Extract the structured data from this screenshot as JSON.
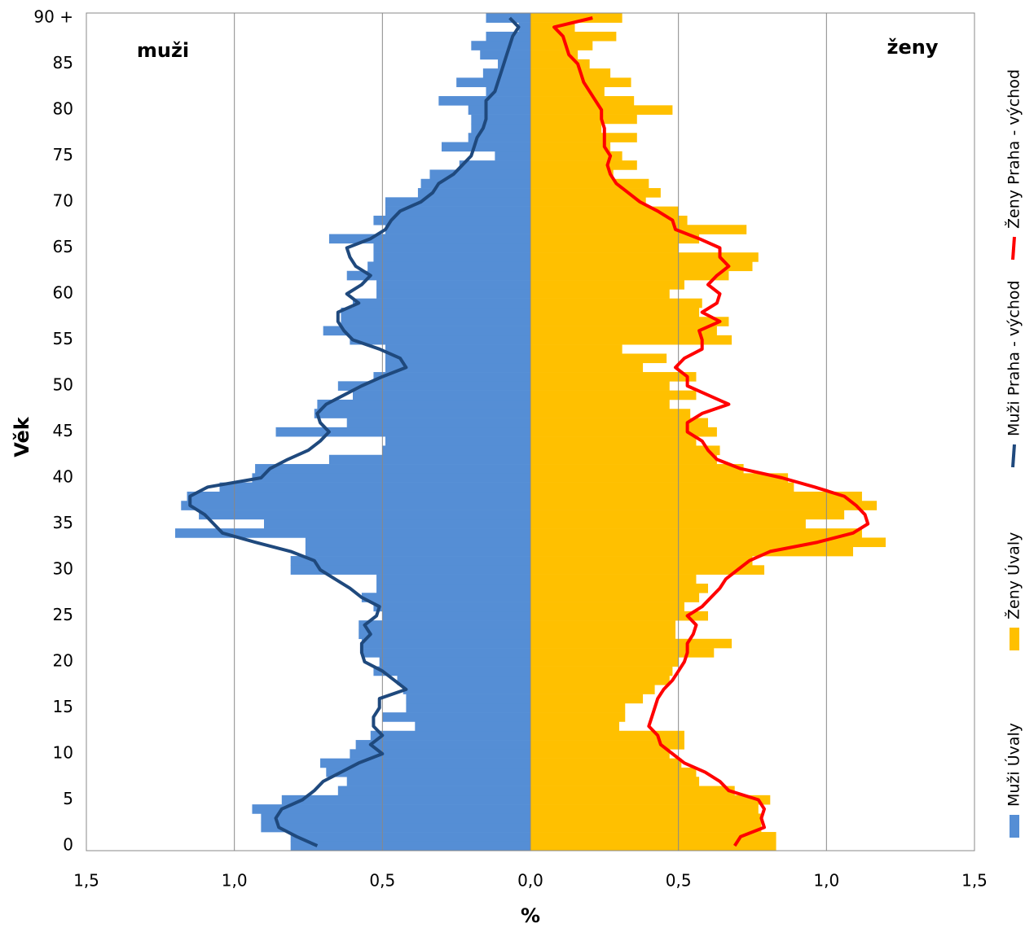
{
  "chart_data": {
    "type": "pyramid",
    "xlabel": "%",
    "ylabel": "Věk",
    "annotations": [
      "muži",
      "ženy"
    ],
    "categories": [
      "0",
      null,
      null,
      null,
      null,
      "5",
      null,
      null,
      null,
      null,
      "10",
      null,
      null,
      null,
      null,
      "15",
      null,
      null,
      null,
      null,
      "20",
      null,
      null,
      null,
      null,
      "25",
      null,
      null,
      null,
      null,
      "30",
      null,
      null,
      null,
      null,
      "35",
      null,
      null,
      null,
      null,
      "40",
      null,
      null,
      null,
      null,
      "45",
      null,
      null,
      null,
      null,
      "50",
      null,
      null,
      null,
      null,
      "55",
      null,
      null,
      null,
      null,
      "60",
      null,
      null,
      null,
      null,
      "65",
      null,
      null,
      null,
      null,
      "70",
      null,
      null,
      null,
      null,
      "75",
      null,
      null,
      null,
      null,
      "80",
      null,
      null,
      null,
      null,
      "85",
      null,
      null,
      null,
      null,
      "90 +"
    ],
    "xlim": [
      -1.5,
      1.5
    ],
    "xticks": [
      {
        "value": -1.5,
        "label": "1,5"
      },
      {
        "value": -1.0,
        "label": "1,0"
      },
      {
        "value": -0.5,
        "label": "0,5"
      },
      {
        "value": 0,
        "label": "0,0"
      },
      {
        "value": 0.5,
        "label": "0,5"
      },
      {
        "value": 1.0,
        "label": "1,0"
      },
      {
        "value": 1.5,
        "label": "1,5"
      }
    ],
    "grid": true,
    "series": [
      {
        "name": "Muži Úvaly",
        "type": "bar",
        "color": "#558ed5",
        "values": [
          -0.81,
          -0.81,
          -0.91,
          -0.91,
          -0.94,
          -0.84,
          -0.65,
          -0.62,
          -0.69,
          -0.71,
          -0.61,
          -0.59,
          -0.54,
          -0.39,
          -0.5,
          -0.42,
          -0.42,
          -0.43,
          -0.45,
          -0.53,
          -0.51,
          -0.57,
          -0.57,
          -0.58,
          -0.58,
          -0.5,
          -0.53,
          -0.57,
          -0.52,
          -0.52,
          -0.81,
          -0.81,
          -0.76,
          -0.76,
          -1.2,
          -0.9,
          -1.12,
          -1.18,
          -1.16,
          -1.05,
          -0.94,
          -0.93,
          -0.68,
          -0.5,
          -0.49,
          -0.86,
          -0.62,
          -0.73,
          -0.72,
          -0.6,
          -0.65,
          -0.53,
          -0.49,
          -0.49,
          -0.49,
          -0.61,
          -0.7,
          -0.64,
          -0.64,
          -0.6,
          -0.52,
          -0.52,
          -0.62,
          -0.55,
          -0.53,
          -0.53,
          -0.68,
          -0.49,
          -0.53,
          -0.49,
          -0.49,
          -0.38,
          -0.37,
          -0.34,
          -0.24,
          -0.12,
          -0.3,
          -0.21,
          -0.2,
          -0.2,
          -0.21,
          -0.31,
          -0.15,
          -0.25,
          -0.16,
          -0.11,
          -0.17,
          -0.2,
          -0.15,
          -0.04,
          -0.15
        ]
      },
      {
        "name": "Ženy Úvaly",
        "type": "bar",
        "color": "#ffc000",
        "values": [
          0.83,
          0.83,
          0.78,
          0.78,
          0.77,
          0.81,
          0.69,
          0.57,
          0.56,
          0.51,
          0.47,
          0.52,
          0.52,
          0.3,
          0.32,
          0.32,
          0.38,
          0.42,
          0.47,
          0.48,
          0.5,
          0.62,
          0.68,
          0.49,
          0.49,
          0.6,
          0.52,
          0.57,
          0.6,
          0.56,
          0.79,
          0.75,
          1.09,
          1.2,
          1.12,
          0.93,
          1.06,
          1.17,
          1.12,
          0.89,
          0.87,
          0.72,
          0.63,
          0.64,
          0.56,
          0.63,
          0.6,
          0.54,
          0.47,
          0.56,
          0.47,
          0.56,
          0.38,
          0.46,
          0.31,
          0.68,
          0.63,
          0.67,
          0.57,
          0.58,
          0.47,
          0.52,
          0.67,
          0.75,
          0.77,
          0.5,
          0.57,
          0.73,
          0.53,
          0.5,
          0.39,
          0.44,
          0.4,
          0.28,
          0.36,
          0.31,
          0.27,
          0.36,
          0.24,
          0.36,
          0.48,
          0.35,
          0.25,
          0.34,
          0.27,
          0.2,
          0.16,
          0.21,
          0.29,
          0.15,
          0.31
        ]
      },
      {
        "name": "Muži Praha - východ",
        "type": "line",
        "color": "#1f497d",
        "values": [
          -0.72,
          -0.79,
          -0.85,
          -0.86,
          -0.84,
          -0.77,
          -0.73,
          -0.7,
          -0.64,
          -0.58,
          -0.5,
          -0.54,
          -0.5,
          -0.53,
          -0.53,
          -0.51,
          -0.51,
          -0.42,
          -0.46,
          -0.5,
          -0.56,
          -0.57,
          -0.57,
          -0.54,
          -0.56,
          -0.52,
          -0.51,
          -0.57,
          -0.61,
          -0.66,
          -0.71,
          -0.73,
          -0.81,
          -0.93,
          -1.04,
          -1.07,
          -1.1,
          -1.15,
          -1.15,
          -1.09,
          -0.91,
          -0.88,
          -0.82,
          -0.75,
          -0.71,
          -0.68,
          -0.71,
          -0.72,
          -0.69,
          -0.63,
          -0.57,
          -0.5,
          -0.42,
          -0.44,
          -0.51,
          -0.6,
          -0.63,
          -0.65,
          -0.65,
          -0.58,
          -0.62,
          -0.57,
          -0.54,
          -0.59,
          -0.61,
          -0.62,
          -0.54,
          -0.49,
          -0.47,
          -0.44,
          -0.37,
          -0.33,
          -0.31,
          -0.26,
          -0.23,
          -0.2,
          -0.19,
          -0.18,
          -0.16,
          -0.15,
          -0.15,
          -0.15,
          -0.12,
          -0.11,
          -0.1,
          -0.09,
          -0.08,
          -0.07,
          -0.06,
          -0.04,
          -0.07
        ]
      },
      {
        "name": "Ženy Praha - východ",
        "type": "line",
        "color": "#ff0000",
        "values": [
          0.69,
          0.71,
          0.79,
          0.78,
          0.79,
          0.77,
          0.67,
          0.64,
          0.59,
          0.52,
          0.48,
          0.44,
          0.43,
          0.4,
          0.41,
          0.42,
          0.43,
          0.45,
          0.48,
          0.5,
          0.52,
          0.53,
          0.53,
          0.55,
          0.56,
          0.53,
          0.58,
          0.61,
          0.64,
          0.66,
          0.7,
          0.74,
          0.81,
          0.97,
          1.09,
          1.14,
          1.13,
          1.1,
          1.06,
          0.96,
          0.85,
          0.71,
          0.63,
          0.6,
          0.58,
          0.53,
          0.53,
          0.58,
          0.67,
          0.6,
          0.53,
          0.53,
          0.49,
          0.52,
          0.58,
          0.58,
          0.57,
          0.64,
          0.58,
          0.63,
          0.64,
          0.6,
          0.63,
          0.67,
          0.64,
          0.64,
          0.57,
          0.49,
          0.48,
          0.43,
          0.37,
          0.33,
          0.29,
          0.27,
          0.26,
          0.27,
          0.25,
          0.25,
          0.25,
          0.24,
          0.24,
          0.22,
          0.2,
          0.18,
          0.17,
          0.16,
          0.13,
          0.12,
          0.11,
          0.08,
          0.21
        ]
      }
    ]
  }
}
